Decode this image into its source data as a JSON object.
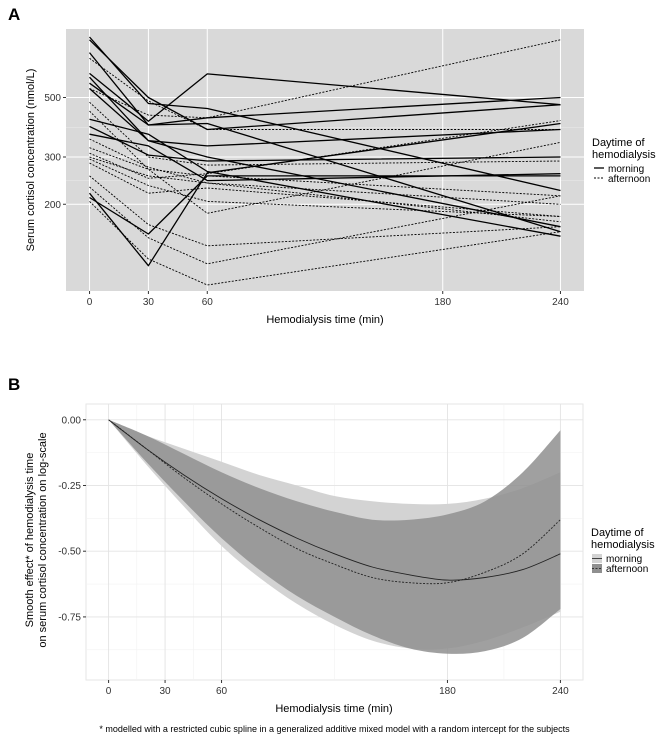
{
  "chart_data": [
    {
      "panel": "A",
      "type": "line",
      "xlabel": "Hemodialysis time (min)",
      "ylabel": "Serum cortisol concentration (nmol/L)",
      "x_ticks": [
        0,
        30,
        60,
        180,
        240
      ],
      "y_ticks": [
        200,
        300,
        500
      ],
      "y_scale": "log",
      "xlim": [
        -12,
        252
      ],
      "ylim": [
        95,
        900
      ],
      "grid": true,
      "legend": {
        "title_lines": [
          "Daytime of",
          "hemodialysis"
        ],
        "position": "right",
        "entries": [
          "morning",
          "afternoon"
        ]
      },
      "x": [
        0,
        30,
        60,
        240
      ],
      "series": [
        {
          "group": "morning",
          "values": [
            840,
            475,
            455,
            225
          ]
        },
        {
          "group": "morning",
          "values": [
            820,
            500,
            380,
            470
          ]
        },
        {
          "group": "morning",
          "values": [
            735,
            395,
            400,
            158
          ]
        },
        {
          "group": "morning",
          "values": [
            615,
            408,
            612,
            470
          ]
        },
        {
          "group": "morning",
          "values": [
            595,
            345,
            330,
            380
          ]
        },
        {
          "group": "morning",
          "values": [
            565,
            395,
            420,
            500
          ]
        },
        {
          "group": "morning",
          "values": [
            540,
            345,
            300,
            165
          ]
        },
        {
          "group": "morning",
          "values": [
            415,
            365,
            265,
            152
          ]
        },
        {
          "group": "morning",
          "values": [
            390,
            305,
            290,
            300
          ]
        },
        {
          "group": "morning",
          "values": [
            365,
            330,
            245,
            260
          ]
        },
        {
          "group": "morning",
          "values": [
            220,
            118,
            262,
            400
          ]
        },
        {
          "group": "morning",
          "values": [
            212,
            155,
            255,
            255
          ]
        },
        {
          "group": "afternoon",
          "values": [
            700,
            485,
            380,
            380
          ]
        },
        {
          "group": "afternoon",
          "values": [
            540,
            430,
            420,
            820
          ]
        },
        {
          "group": "afternoon",
          "values": [
            480,
            300,
            280,
            290
          ]
        },
        {
          "group": "afternoon",
          "values": [
            445,
            270,
            255,
            215
          ]
        },
        {
          "group": "afternoon",
          "values": [
            350,
            275,
            240,
            200
          ]
        },
        {
          "group": "afternoon",
          "values": [
            325,
            270,
            185,
            340
          ]
        },
        {
          "group": "afternoon",
          "values": [
            310,
            250,
            260,
            410
          ]
        },
        {
          "group": "afternoon",
          "values": [
            300,
            255,
            240,
            172
          ]
        },
        {
          "group": "afternoon",
          "values": [
            295,
            235,
            205,
            180
          ]
        },
        {
          "group": "afternoon",
          "values": [
            285,
            220,
            230,
            180
          ]
        },
        {
          "group": "afternoon",
          "values": [
            255,
            168,
            140,
            165
          ]
        },
        {
          "group": "afternoon",
          "values": [
            232,
            150,
            120,
            215
          ]
        },
        {
          "group": "afternoon",
          "values": [
            205,
            125,
            100,
            158
          ]
        }
      ]
    },
    {
      "panel": "B",
      "type": "line",
      "xlabel": "Hemodialysis time (min)",
      "ylabel_lines": [
        "Smooth effect* of hemodialysis time",
        "on serum cortisol concentration on log-scale"
      ],
      "x_ticks": [
        0,
        30,
        60,
        180,
        240
      ],
      "y_ticks": [
        0.0,
        -0.25,
        -0.5,
        -0.75
      ],
      "y_tick_labels": [
        "0.00",
        "-0.25",
        "-0.50",
        "-0.75"
      ],
      "xlim": [
        -12,
        252
      ],
      "ylim": [
        -0.99,
        0.06
      ],
      "grid": true,
      "legend": {
        "title_lines": [
          "Daytime of",
          "hemodialysis"
        ],
        "position": "right",
        "entries": [
          "morning",
          "afternoon"
        ]
      },
      "x": [
        0,
        20,
        40,
        60,
        80,
        100,
        120,
        140,
        160,
        180,
        200,
        220,
        240
      ],
      "series": [
        {
          "group": "morning",
          "fit": [
            0,
            -0.11,
            -0.21,
            -0.3,
            -0.38,
            -0.45,
            -0.51,
            -0.56,
            -0.59,
            -0.61,
            -0.6,
            -0.57,
            -0.51
          ],
          "lower": [
            0,
            -0.17,
            -0.33,
            -0.48,
            -0.6,
            -0.7,
            -0.78,
            -0.84,
            -0.87,
            -0.87,
            -0.84,
            -0.79,
            -0.73
          ],
          "upper": [
            0,
            -0.06,
            -0.11,
            -0.16,
            -0.21,
            -0.25,
            -0.29,
            -0.31,
            -0.32,
            -0.32,
            -0.3,
            -0.26,
            -0.2
          ]
        },
        {
          "group": "afternoon",
          "fit": [
            0,
            -0.11,
            -0.22,
            -0.32,
            -0.41,
            -0.49,
            -0.55,
            -0.6,
            -0.62,
            -0.62,
            -0.58,
            -0.51,
            -0.38
          ],
          "lower": [
            0,
            -0.16,
            -0.31,
            -0.45,
            -0.57,
            -0.67,
            -0.75,
            -0.82,
            -0.87,
            -0.89,
            -0.88,
            -0.83,
            -0.72
          ],
          "upper": [
            0,
            -0.06,
            -0.13,
            -0.2,
            -0.26,
            -0.31,
            -0.35,
            -0.38,
            -0.38,
            -0.36,
            -0.31,
            -0.2,
            -0.04
          ]
        }
      ]
    }
  ],
  "footnote": "* modelled with a restricted cubic spline in a generalized additive mixed model with a random intercept for the subjects",
  "colors": {
    "panel_bg": "#d9d9d9",
    "grid_major": "#ffffff",
    "band_morning": "#d3d3d3",
    "band_afternoon": "#8f8f8f",
    "band_overlap": "#8a8a8a"
  }
}
